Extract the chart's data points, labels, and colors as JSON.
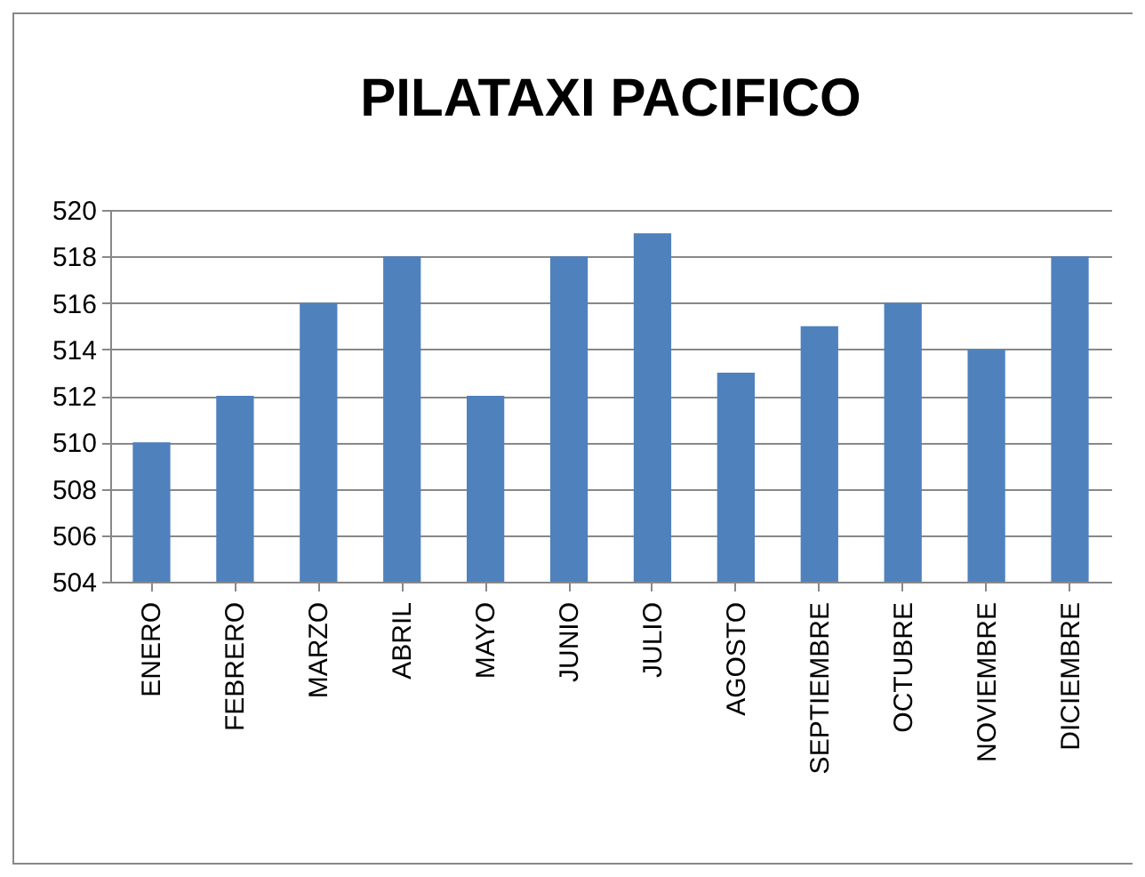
{
  "chart_data": {
    "type": "bar",
    "title": "PILATAXI PACIFICO",
    "categories": [
      "ENERO",
      "FEBRERO",
      "MARZO",
      "ABRIL",
      "MAYO",
      "JUNIO",
      "JULIO",
      "AGOSTO",
      "SEPTIEMBRE",
      "OCTUBRE",
      "NOVIEMBRE",
      "DICIEMBRE"
    ],
    "values": [
      510,
      512,
      516,
      518,
      512,
      518,
      519,
      513,
      515,
      516,
      514,
      518
    ],
    "color": "#4f81bd",
    "ylim": [
      504,
      520
    ],
    "yticks": [
      504,
      506,
      508,
      510,
      512,
      514,
      516,
      518,
      520
    ],
    "grid": "y"
  }
}
